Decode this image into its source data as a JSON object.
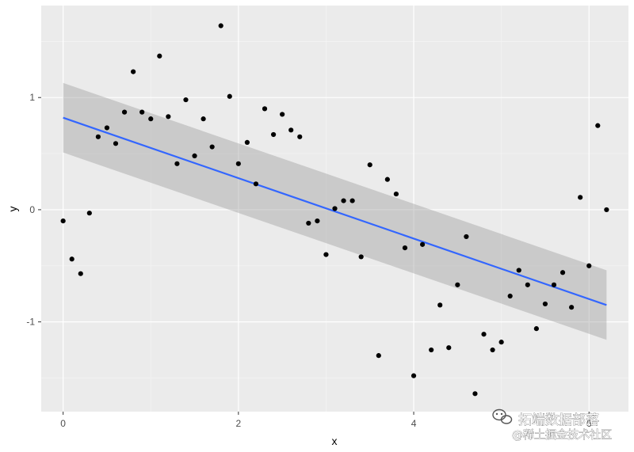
{
  "chart_data": {
    "type": "scatter",
    "title": "",
    "xlabel": "x",
    "ylabel": "y",
    "xlim": [
      -0.25,
      6.45
    ],
    "ylim": [
      -1.8,
      1.82
    ],
    "x_ticks": [
      0,
      2,
      4,
      6
    ],
    "y_ticks": [
      -1,
      0,
      1
    ],
    "grid": true,
    "background": "grey",
    "points": [
      [
        0.0,
        -0.1
      ],
      [
        0.1,
        -0.44
      ],
      [
        0.2,
        -0.57
      ],
      [
        0.3,
        -0.03
      ],
      [
        0.4,
        0.65
      ],
      [
        0.5,
        0.73
      ],
      [
        0.6,
        0.59
      ],
      [
        0.7,
        0.87
      ],
      [
        0.8,
        1.23
      ],
      [
        0.9,
        0.87
      ],
      [
        1.0,
        0.81
      ],
      [
        1.1,
        1.37
      ],
      [
        1.2,
        0.83
      ],
      [
        1.3,
        0.41
      ],
      [
        1.4,
        0.98
      ],
      [
        1.5,
        0.48
      ],
      [
        1.6,
        0.81
      ],
      [
        1.7,
        0.56
      ],
      [
        1.8,
        1.64
      ],
      [
        1.9,
        1.01
      ],
      [
        2.0,
        0.41
      ],
      [
        2.1,
        0.6
      ],
      [
        2.2,
        0.23
      ],
      [
        2.3,
        0.9
      ],
      [
        2.4,
        0.67
      ],
      [
        2.5,
        0.85
      ],
      [
        2.6,
        0.71
      ],
      [
        2.7,
        0.65
      ],
      [
        2.8,
        -0.12
      ],
      [
        2.9,
        -0.1
      ],
      [
        3.0,
        -0.4
      ],
      [
        3.1,
        0.01
      ],
      [
        3.2,
        0.08
      ],
      [
        3.3,
        0.08
      ],
      [
        3.4,
        -0.42
      ],
      [
        3.5,
        0.4
      ],
      [
        3.6,
        -1.3
      ],
      [
        3.7,
        0.27
      ],
      [
        3.8,
        0.14
      ],
      [
        3.9,
        -0.34
      ],
      [
        4.0,
        -1.48
      ],
      [
        4.1,
        -0.31
      ],
      [
        4.2,
        -1.25
      ],
      [
        4.3,
        -0.85
      ],
      [
        4.4,
        -1.23
      ],
      [
        4.5,
        -0.67
      ],
      [
        4.6,
        -0.24
      ],
      [
        4.7,
        -1.64
      ],
      [
        4.8,
        -1.11
      ],
      [
        4.9,
        -1.25
      ],
      [
        5.0,
        -1.18
      ],
      [
        5.1,
        -0.77
      ],
      [
        5.2,
        -0.54
      ],
      [
        5.3,
        -0.67
      ],
      [
        5.4,
        -1.06
      ],
      [
        5.5,
        -0.84
      ],
      [
        5.6,
        -0.67
      ],
      [
        5.7,
        -0.56
      ],
      [
        5.8,
        -0.87
      ],
      [
        5.9,
        0.11
      ],
      [
        6.0,
        -0.5
      ],
      [
        6.1,
        0.75
      ],
      [
        6.2,
        0.0
      ]
    ],
    "fit": {
      "method": "lm",
      "x": [
        0,
        6.2
      ],
      "y": [
        0.82,
        -0.85
      ],
      "ci_upper": [
        1.13,
        -0.54
      ],
      "ci_lower": [
        0.51,
        -1.16
      ],
      "line_color": "#3366ff",
      "band_color": "#999999"
    },
    "point_color": "#000000"
  },
  "watermark": {
    "line1": "拓端数据部落",
    "line2": "@稀土掘金技术社区"
  },
  "colors": {
    "panel_bg": "#ebebeb",
    "grid_major": "#ffffff",
    "grid_minor": "#f5f5f5",
    "tick_text": "#4d4d4d"
  }
}
